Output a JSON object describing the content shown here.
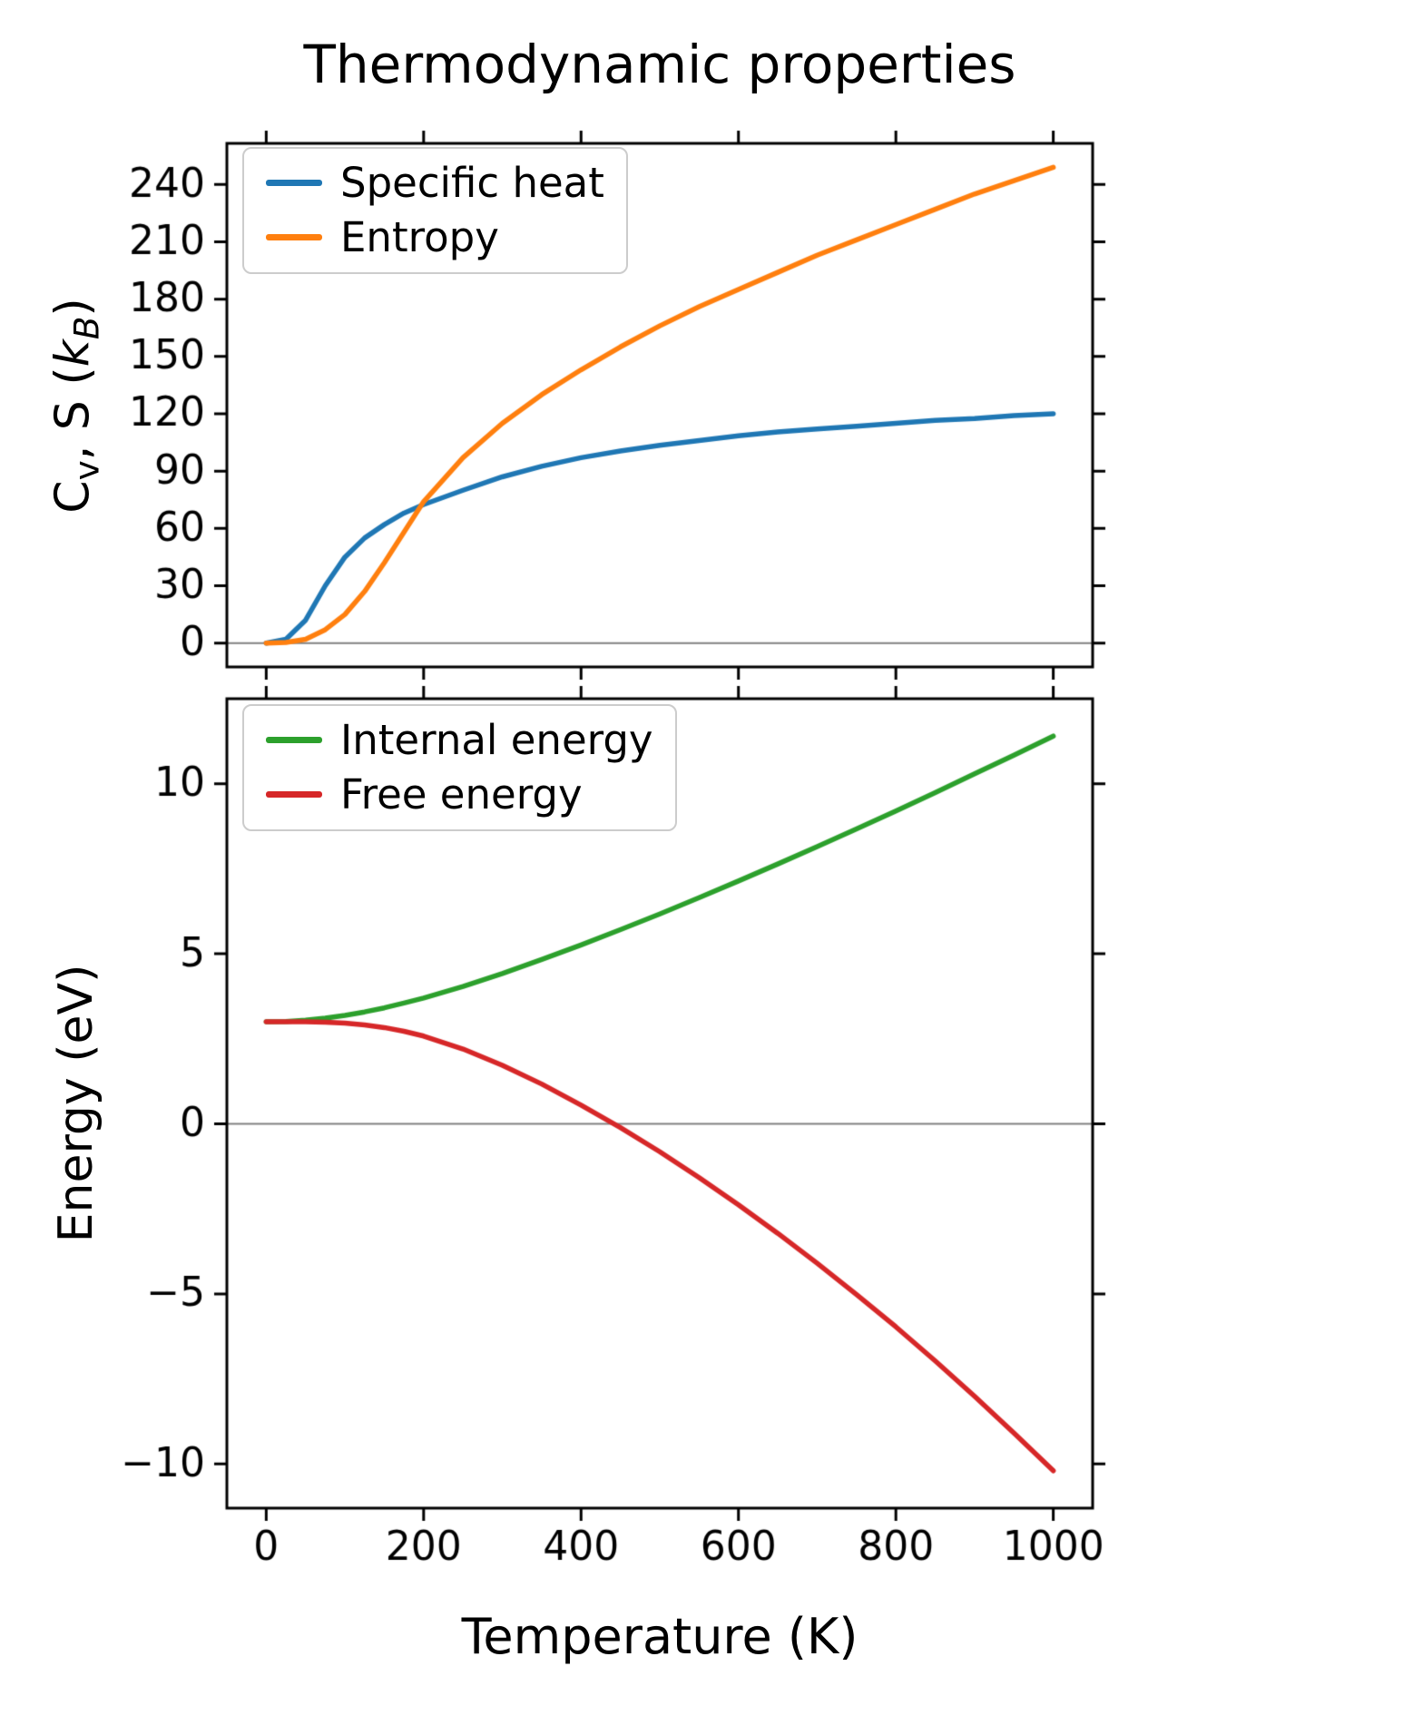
{
  "figure": {
    "background": "#ffffff"
  },
  "chart_data": [
    {
      "type": "line",
      "title": "Thermodynamic properties",
      "xlabel": "",
      "ylabel": "Cv, S (kB)",
      "ylabel_segments": [
        {
          "text": "C",
          "style": "normal"
        },
        {
          "text": "v",
          "style": "sub"
        },
        {
          "text": ", S (",
          "style": "normal"
        },
        {
          "text": "k",
          "style": "italic"
        },
        {
          "text": "B",
          "style": "sub-italic"
        },
        {
          "text": ")",
          "style": "normal"
        }
      ],
      "x": [
        0,
        25,
        50,
        75,
        100,
        125,
        150,
        175,
        200,
        250,
        300,
        350,
        400,
        450,
        500,
        550,
        600,
        650,
        700,
        750,
        800,
        850,
        900,
        950,
        1000
      ],
      "series": [
        {
          "name": "Specific heat",
          "color": "#1f77b4",
          "values": [
            0,
            2,
            12,
            30,
            45,
            55,
            62,
            68,
            72.5,
            80,
            87,
            92.5,
            97,
            100.5,
            103.5,
            106,
            108.5,
            110.5,
            112,
            113.5,
            115,
            116.5,
            117.5,
            119,
            120
          ]
        },
        {
          "name": "Entropy",
          "color": "#ff7f0e",
          "values": [
            0,
            0.3,
            2,
            7,
            15,
            27,
            42,
            58,
            74,
            97,
            115,
            130,
            143,
            155,
            166,
            176,
            185,
            194,
            203,
            211,
            219,
            227,
            235,
            242,
            249
          ]
        }
      ],
      "xlim": [
        -50,
        1050
      ],
      "ylim": [
        -12.5,
        261.5
      ],
      "xticks": [
        0,
        200,
        400,
        600,
        800,
        1000
      ],
      "yticks": [
        0,
        30,
        60,
        90,
        120,
        150,
        180,
        210,
        240
      ],
      "show_xticklabels": false,
      "legend_position": "upper left",
      "zero_line": true,
      "grid": false
    },
    {
      "type": "line",
      "title": "",
      "xlabel": "Temperature (K)",
      "ylabel": "Energy (eV)",
      "x": [
        0,
        25,
        50,
        75,
        100,
        125,
        150,
        175,
        200,
        250,
        300,
        350,
        400,
        450,
        500,
        550,
        600,
        650,
        700,
        750,
        800,
        850,
        900,
        950,
        1000
      ],
      "series": [
        {
          "name": "Internal energy",
          "color": "#2ca02c",
          "values": [
            3.0,
            3.01,
            3.05,
            3.11,
            3.19,
            3.29,
            3.41,
            3.55,
            3.7,
            4.04,
            4.42,
            4.83,
            5.26,
            5.71,
            6.17,
            6.65,
            7.14,
            7.64,
            8.15,
            8.67,
            9.2,
            9.74,
            10.29,
            10.84,
            11.4
          ]
        },
        {
          "name": "Free energy",
          "color": "#d62728",
          "values": [
            3.0,
            3.0,
            3.0,
            2.99,
            2.96,
            2.91,
            2.83,
            2.72,
            2.58,
            2.2,
            1.72,
            1.17,
            0.55,
            -0.11,
            -0.82,
            -1.58,
            -2.38,
            -3.22,
            -4.1,
            -5.02,
            -5.97,
            -6.97,
            -8.01,
            -9.09,
            -10.2
          ]
        }
      ],
      "xlim": [
        -50,
        1050
      ],
      "ylim": [
        -11.3,
        12.5
      ],
      "xticks": [
        0,
        200,
        400,
        600,
        800,
        1000
      ],
      "yticks": [
        -10,
        -5,
        0,
        5,
        10
      ],
      "show_xticklabels": true,
      "legend_position": "upper left",
      "zero_line": true,
      "grid": false
    }
  ]
}
